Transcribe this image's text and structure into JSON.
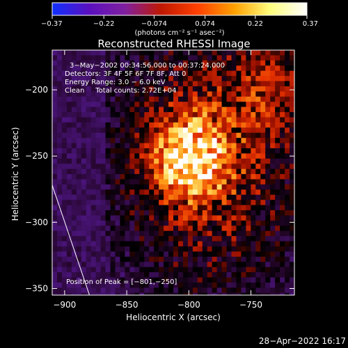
{
  "chart_data": {
    "type": "heatmap",
    "title": "Reconstructed RHESSI Image",
    "xlabel": "Heliocentric X (arcsec)",
    "ylabel": "Heliocentric Y (arcsec)",
    "xlim": [
      -910,
      -715
    ],
    "ylim": [
      -355,
      -170
    ],
    "x_ticks": [
      -900,
      -850,
      -800,
      -750
    ],
    "x_tick_labels": [
      "−900",
      "−850",
      "−800",
      "−750"
    ],
    "y_ticks": [
      -200,
      -250,
      -300,
      -350
    ],
    "y_tick_labels": [
      "−200",
      "−250",
      "−300",
      "−350"
    ],
    "colorbar": {
      "range": [
        -0.37,
        0.37
      ],
      "ticks": [
        -0.37,
        -0.22,
        -0.074,
        0.074,
        0.22,
        0.37
      ],
      "tick_labels": [
        "−0.37",
        "−0.22",
        "−0.074",
        "0.074",
        "0.22",
        "0.37"
      ],
      "units": "(photons cm⁻² s⁻¹ asec⁻²)",
      "colors": [
        "#1030ff",
        "#5a10c0",
        "#8020a0",
        "#c01800",
        "#ff4000",
        "#ffa000",
        "#ffff80",
        "#ffffff"
      ]
    },
    "annotations": {
      "time": "3−May−2002 00:34:56.000 to 00:37:24.000",
      "detectors": "Detectors: 3F 4F 5F 6F 7F 8F, Att 0",
      "energy": "Energy Range: 3.0 − 6.0 keV",
      "clean": "Clean     Total counts: 2.72E+04",
      "peak": "Position of Peak = [−801,−250]"
    },
    "peak": {
      "x": -801,
      "y": -250,
      "value": 0.37
    },
    "limb_arc": {
      "x": [
        -910,
        -880
      ],
      "y": [
        -272,
        -355
      ]
    },
    "background_color": "#5a1a9a"
  },
  "footer": {
    "timestamp": "28−Apr−2022 16:17"
  }
}
